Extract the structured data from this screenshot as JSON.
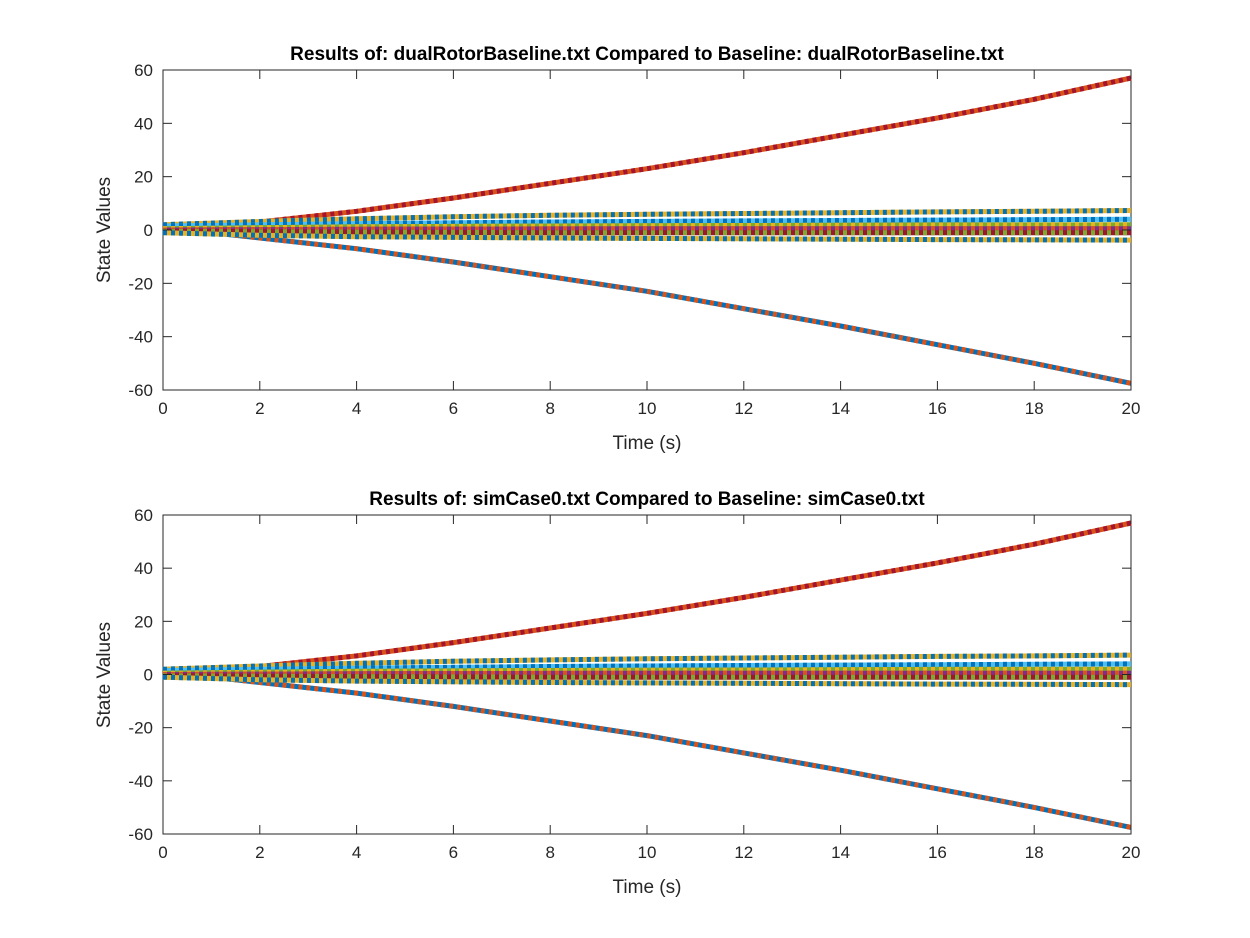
{
  "chart_data": [
    {
      "type": "line",
      "title": "Results of: dualRotorBaseline.txt  Compared to Baseline: dualRotorBaseline.txt",
      "xlabel": "Time (s)",
      "ylabel": "State Values",
      "xlim": [
        0,
        20
      ],
      "ylim": [
        -60,
        60
      ],
      "xticks": [
        0,
        2,
        4,
        6,
        8,
        10,
        12,
        14,
        16,
        18,
        20
      ],
      "yticks": [
        -60,
        -40,
        -20,
        0,
        20,
        40,
        60
      ],
      "grid": false,
      "series": [
        {
          "color": "#D95319",
          "dash": "#A2142F",
          "x": [
            0,
            1,
            2,
            4,
            6,
            8,
            10,
            12,
            14,
            16,
            18,
            20
          ],
          "values": [
            1,
            1.5,
            3,
            7,
            12,
            17.5,
            23,
            29,
            35.5,
            42,
            49,
            57
          ]
        },
        {
          "color": "#0072BD",
          "dash": "#D95319",
          "x": [
            0,
            1,
            2,
            4,
            6,
            8,
            10,
            12,
            14,
            16,
            18,
            20
          ],
          "values": [
            0,
            -1,
            -3,
            -7,
            -12,
            -17.5,
            -23,
            -29.5,
            -36,
            -43,
            -50,
            -57.5
          ]
        },
        {
          "color": "#EDB120",
          "dash": "#0072BD",
          "x": [
            0,
            2,
            4,
            6,
            8,
            10,
            12,
            14,
            16,
            18,
            20
          ],
          "values": [
            2,
            3.2,
            4.2,
            5,
            5.5,
            5.9,
            6.2,
            6.5,
            6.8,
            7,
            7.3
          ]
        },
        {
          "color": "#4DBEEE",
          "dash": "#0072BD",
          "x": [
            0,
            4,
            8,
            12,
            16,
            20
          ],
          "values": [
            1.5,
            2.4,
            3,
            3.4,
            3.7,
            4
          ]
        },
        {
          "color": "#77AC30",
          "dash": "#EDB120",
          "x": [
            0,
            4,
            8,
            12,
            16,
            20
          ],
          "values": [
            0.5,
            1.2,
            1.5,
            1.7,
            1.9,
            2
          ]
        },
        {
          "color": "#7E2F8E",
          "dash": "#D95319",
          "x": [
            0,
            4,
            8,
            12,
            16,
            20
          ],
          "values": [
            0,
            0.3,
            0.4,
            0.5,
            0.5,
            0.5
          ]
        },
        {
          "color": "#A2142F",
          "dash": "#77AC30",
          "x": [
            0,
            4,
            8,
            12,
            16,
            20
          ],
          "values": [
            -0.5,
            -0.8,
            -1,
            -1,
            -1,
            -1
          ]
        },
        {
          "color": "#EDB120",
          "dash": "#0072BD",
          "x": [
            0,
            2,
            4,
            8,
            12,
            16,
            20
          ],
          "values": [
            -1,
            -2,
            -2.5,
            -3,
            -3.3,
            -3.6,
            -3.8
          ]
        }
      ]
    },
    {
      "type": "line",
      "title": "Results of: simCase0.txt  Compared to Baseline: simCase0.txt",
      "xlabel": "Time (s)",
      "ylabel": "State Values",
      "xlim": [
        0,
        20
      ],
      "ylim": [
        -60,
        60
      ],
      "xticks": [
        0,
        2,
        4,
        6,
        8,
        10,
        12,
        14,
        16,
        18,
        20
      ],
      "yticks": [
        -60,
        -40,
        -20,
        0,
        20,
        40,
        60
      ],
      "grid": false,
      "series": [
        {
          "color": "#D95319",
          "dash": "#A2142F",
          "x": [
            0,
            1,
            2,
            4,
            6,
            8,
            10,
            12,
            14,
            16,
            18,
            20
          ],
          "values": [
            1,
            1.5,
            3,
            7,
            12,
            17.5,
            23,
            29,
            35.5,
            42,
            49,
            57
          ]
        },
        {
          "color": "#0072BD",
          "dash": "#D95319",
          "x": [
            0,
            1,
            2,
            4,
            6,
            8,
            10,
            12,
            14,
            16,
            18,
            20
          ],
          "values": [
            0,
            -1,
            -3,
            -7,
            -12,
            -17.5,
            -23,
            -29.5,
            -36,
            -43,
            -50,
            -57.5
          ]
        },
        {
          "color": "#EDB120",
          "dash": "#0072BD",
          "x": [
            0,
            2,
            4,
            6,
            8,
            10,
            12,
            14,
            16,
            18,
            20
          ],
          "values": [
            2,
            3.2,
            4.2,
            5,
            5.5,
            5.9,
            6.2,
            6.5,
            6.8,
            7,
            7.3
          ]
        },
        {
          "color": "#4DBEEE",
          "dash": "#0072BD",
          "x": [
            0,
            4,
            8,
            12,
            16,
            20
          ],
          "values": [
            1.5,
            2.4,
            3,
            3.4,
            3.7,
            4
          ]
        },
        {
          "color": "#77AC30",
          "dash": "#EDB120",
          "x": [
            0,
            4,
            8,
            12,
            16,
            20
          ],
          "values": [
            0.5,
            1.2,
            1.5,
            1.7,
            1.9,
            2
          ]
        },
        {
          "color": "#7E2F8E",
          "dash": "#D95319",
          "x": [
            0,
            4,
            8,
            12,
            16,
            20
          ],
          "values": [
            0,
            0.3,
            0.4,
            0.5,
            0.5,
            0.5
          ]
        },
        {
          "color": "#A2142F",
          "dash": "#77AC30",
          "x": [
            0,
            4,
            8,
            12,
            16,
            20
          ],
          "values": [
            -0.5,
            -0.8,
            -1,
            -1,
            -1,
            -1
          ]
        },
        {
          "color": "#EDB120",
          "dash": "#0072BD",
          "x": [
            0,
            2,
            4,
            8,
            12,
            16,
            20
          ],
          "values": [
            -1,
            -2,
            -2.5,
            -3,
            -3.3,
            -3.6,
            -3.8
          ]
        }
      ]
    }
  ]
}
